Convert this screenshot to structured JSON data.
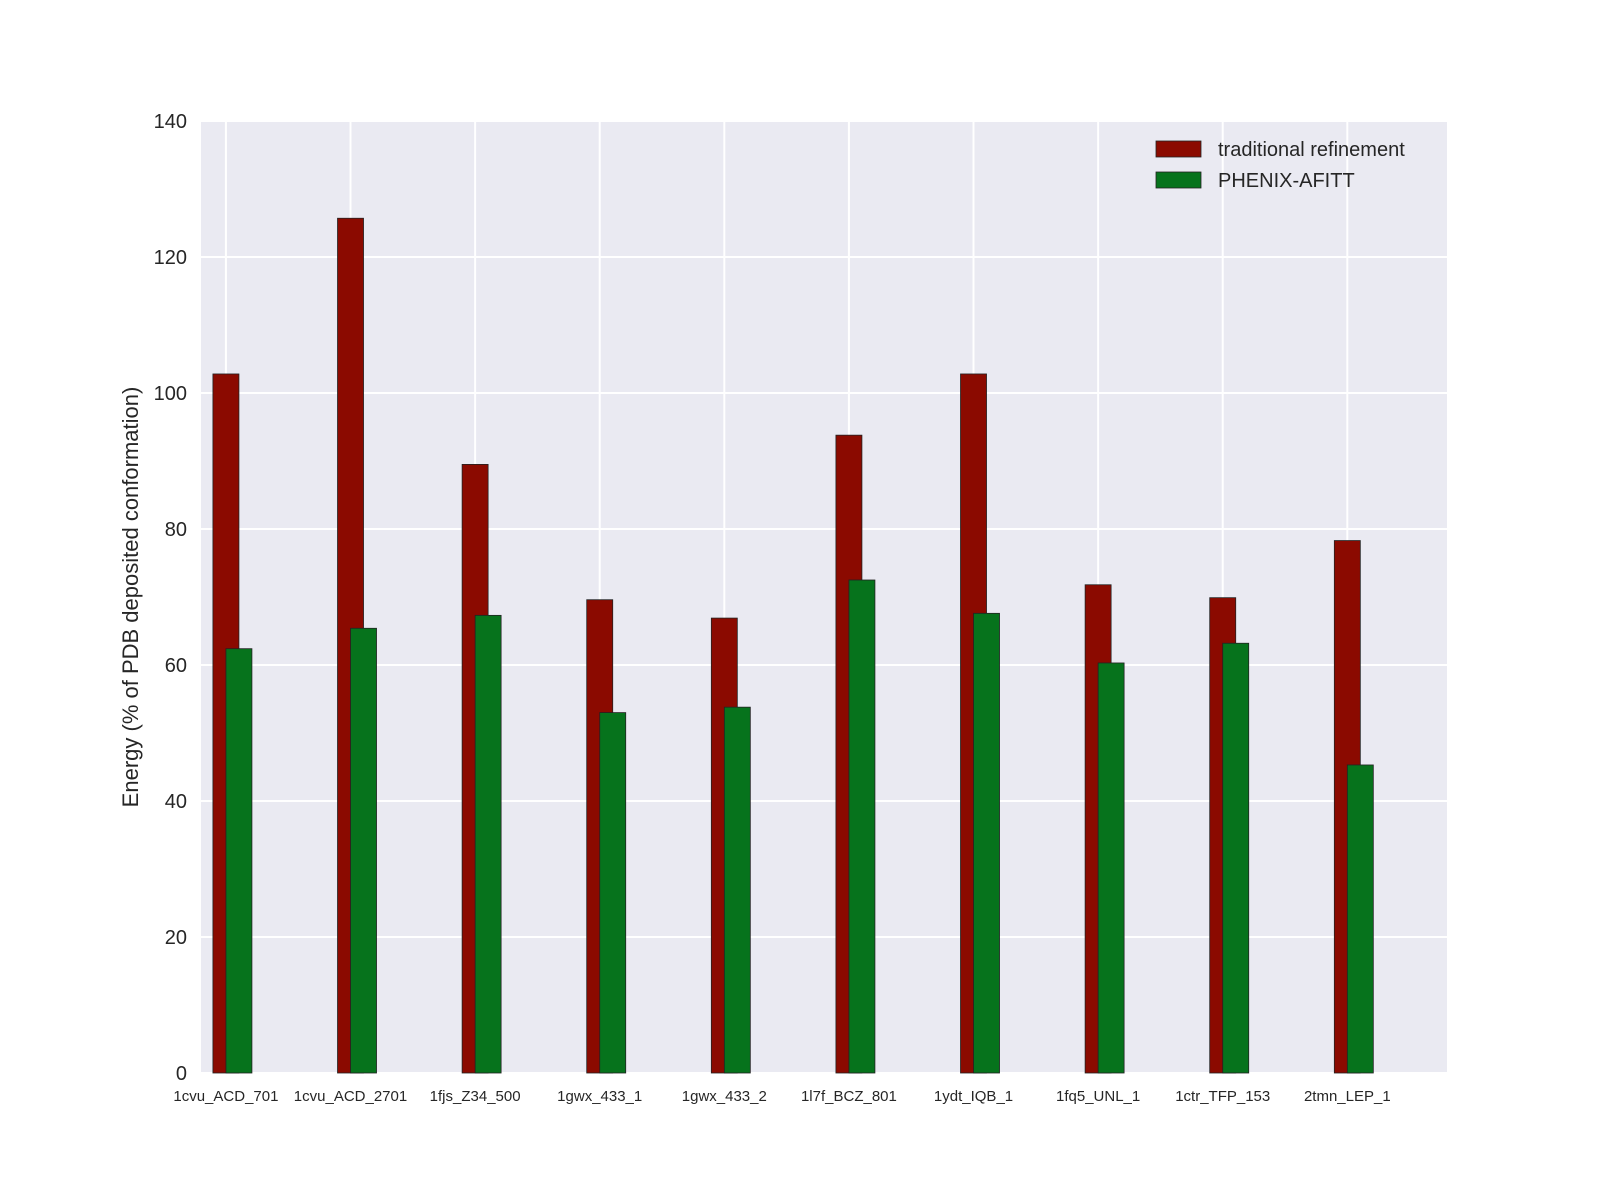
{
  "chart_data": {
    "type": "bar",
    "title": "",
    "xlabel": "",
    "ylabel": "Energy (% of PDB deposited conformation)",
    "ylim": [
      0,
      140
    ],
    "xlim": [
      -0.2,
      9.8
    ],
    "yticks": [
      0,
      20,
      40,
      60,
      80,
      100,
      120,
      140
    ],
    "grid": true,
    "legend_position": "top-right",
    "categories": [
      "1cvu_ACD_701",
      "1cvu_ACD_2701",
      "1fjs_Z34_500",
      "1gwx_433_1",
      "1gwx_433_2",
      "1l7f_BCZ_801",
      "1ydt_IQB_1",
      "1fq5_UNL_1",
      "1ctr_TFP_153",
      "2tmn_LEP_1"
    ],
    "series": [
      {
        "name": "traditional refinement",
        "color": "#8b0a00",
        "values": [
          102.8,
          125.7,
          89.5,
          69.6,
          66.9,
          93.8,
          102.8,
          71.8,
          69.9,
          78.3
        ]
      },
      {
        "name": "PHENIX-AFITT",
        "color": "#06731c",
        "values": [
          62.4,
          65.4,
          67.3,
          53.0,
          53.8,
          72.5,
          67.6,
          60.3,
          63.2,
          45.3
        ]
      }
    ],
    "background": "#eaeaf2"
  }
}
